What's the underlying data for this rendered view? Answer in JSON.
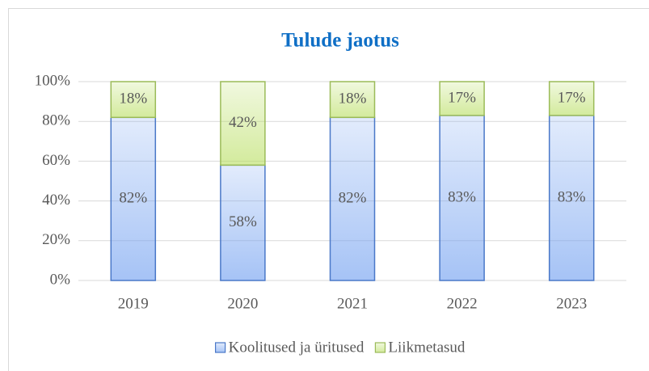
{
  "chart_data": {
    "type": "stacked_bar",
    "title": "Tulude jaotus",
    "categories": [
      "2019",
      "2020",
      "2021",
      "2022",
      "2023"
    ],
    "series": [
      {
        "name": "Koolitused ja üritused",
        "color": "#6f9ef0",
        "edgecolor": "#4a78c8",
        "values": [
          82,
          58,
          82,
          83,
          83
        ],
        "value_labels": [
          "82%",
          "58%",
          "82%",
          "83%",
          "83%"
        ]
      },
      {
        "name": "Liikmetasud",
        "color": "#b8de60",
        "edgecolor": "#9bbb59",
        "values": [
          18,
          42,
          18,
          17,
          17
        ],
        "value_labels": [
          "18%",
          "42%",
          "18%",
          "17%",
          "17%"
        ]
      }
    ],
    "ylim": [
      0,
      100
    ],
    "yticks": [
      {
        "value": 0,
        "label": "0%"
      },
      {
        "value": 20,
        "label": "20%"
      },
      {
        "value": 40,
        "label": "40%"
      },
      {
        "value": 60,
        "label": "60%"
      },
      {
        "value": 80,
        "label": "80%"
      },
      {
        "value": 100,
        "label": "100%"
      }
    ],
    "grid": true,
    "legend": "bottom"
  }
}
